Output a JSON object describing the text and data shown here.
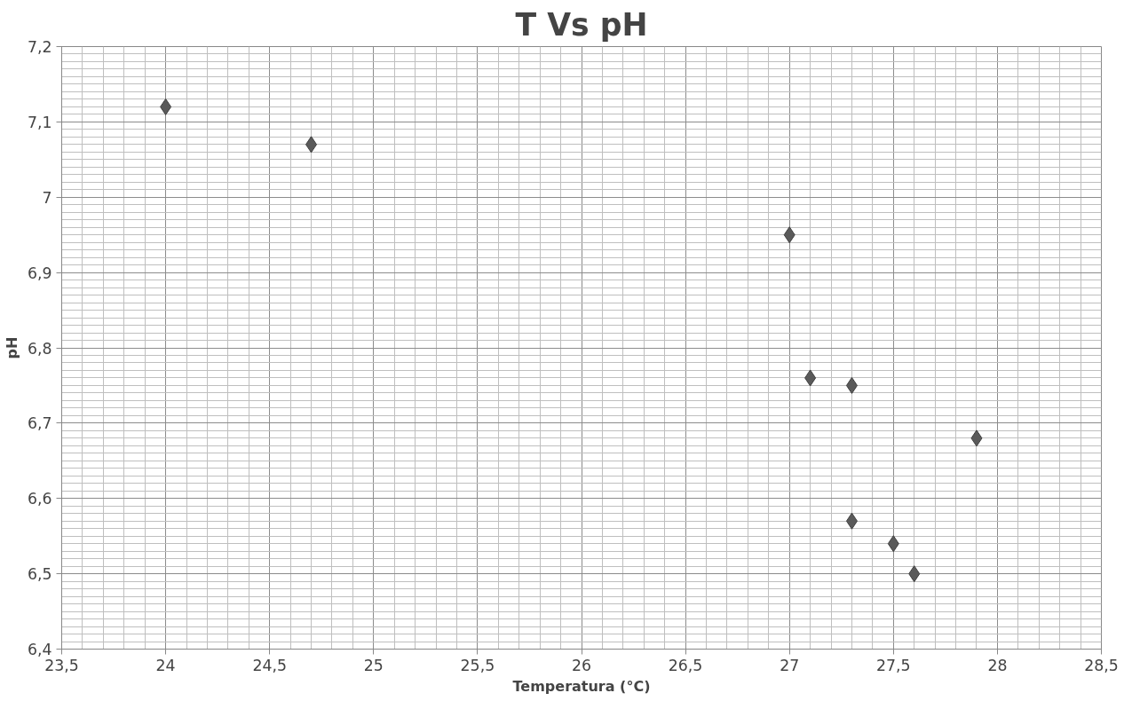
{
  "chart_data": {
    "type": "scatter",
    "title": "T Vs pH",
    "xlabel": "Temperatura (°C)",
    "ylabel": "pH",
    "x": [
      24,
      24.7,
      27,
      27.1,
      27.3,
      27.9,
      27.3,
      27.5,
      27.6
    ],
    "series": [
      {
        "color": "#5a5a5a",
        "values": [
          7.12,
          7.07,
          6.95,
          6.76,
          6.75,
          6.68,
          6.57,
          6.54,
          6.5
        ]
      }
    ],
    "xlim": [
      23.5,
      28.5
    ],
    "xticks": [
      {
        "value": 23.5,
        "label": "23,5"
      },
      24,
      {
        "value": 24.5,
        "label": "24,5"
      },
      25,
      {
        "value": 25.5,
        "label": "25,5"
      },
      26,
      {
        "value": 26.5,
        "label": "26,5"
      },
      27,
      {
        "value": 27.5,
        "label": "27,5"
      },
      28,
      {
        "value": 28.5,
        "label": "28,5"
      }
    ],
    "ylim": [
      6.4,
      7.2
    ],
    "yticks": [
      {
        "value": 6.4,
        "label": "6,4"
      },
      {
        "value": 6.5,
        "label": "6,5"
      },
      {
        "value": 6.6,
        "label": "6,6"
      },
      {
        "value": 6.7,
        "label": "6,7"
      },
      {
        "value": 6.8,
        "label": "6,8"
      },
      {
        "value": 6.9,
        "label": "6,9"
      },
      7,
      {
        "value": 7.1,
        "label": "7,1"
      },
      {
        "value": 7.2,
        "label": "7,2"
      }
    ],
    "grid": true,
    "marker": "diamond"
  }
}
